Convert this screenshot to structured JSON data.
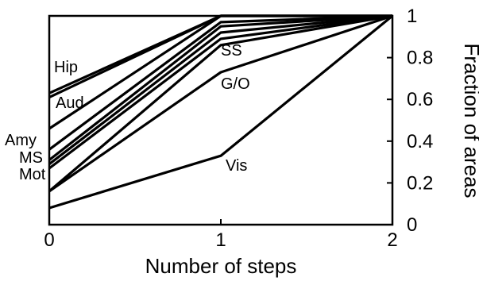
{
  "chart_data": {
    "type": "line",
    "title": "",
    "xlabel": "Number of steps",
    "ylabel": "Fraction of areas",
    "x": [
      0,
      1,
      2
    ],
    "xlim": [
      0,
      2
    ],
    "ylim": [
      0,
      1
    ],
    "xticks": [
      0,
      1,
      2
    ],
    "yticks": [
      0,
      0.2,
      0.4,
      0.6,
      0.8,
      1
    ],
    "ytick_labels": [
      "0",
      "0.2",
      "0.4",
      "0.6",
      "0.8",
      "1"
    ],
    "yaxis_side": "right",
    "grid": false,
    "legend": "none",
    "line_color": "#000000",
    "series": [
      {
        "name": "Hip",
        "values": [
          0.63,
          1.0,
          1.0
        ]
      },
      {
        "name": "",
        "values": [
          0.61,
          1.0,
          1.0
        ]
      },
      {
        "name": "Aud",
        "values": [
          0.46,
          1.0,
          1.0
        ]
      },
      {
        "name": "Amy",
        "values": [
          0.36,
          0.97,
          1.0
        ]
      },
      {
        "name": "MS",
        "values": [
          0.31,
          0.95,
          1.0
        ]
      },
      {
        "name": "",
        "values": [
          0.29,
          0.92,
          1.0
        ]
      },
      {
        "name": "SS",
        "values": [
          0.27,
          0.89,
          1.0
        ]
      },
      {
        "name": "Mot",
        "values": [
          0.16,
          0.86,
          1.0
        ]
      },
      {
        "name": "G/O",
        "values": [
          0.16,
          0.73,
          1.0
        ]
      },
      {
        "name": "Vis",
        "values": [
          0.08,
          0.33,
          1.0
        ]
      }
    ]
  }
}
